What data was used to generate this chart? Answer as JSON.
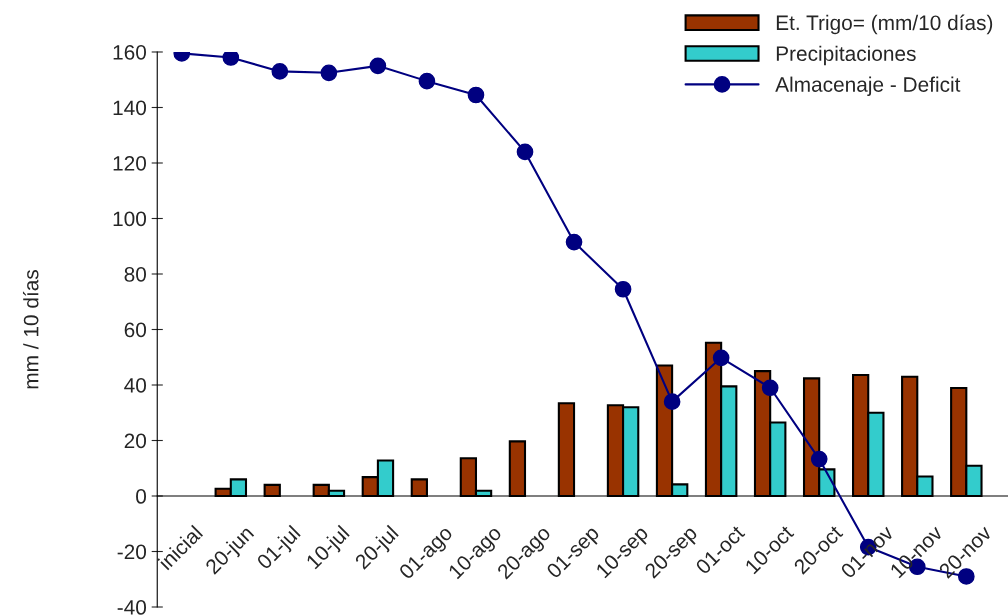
{
  "chart_data": {
    "type": "bar",
    "ylabel": "mm / 10 días",
    "categories": [
      "inicial",
      "20-jun",
      "01-jul",
      "10-jul",
      "20-jul",
      "01-ago",
      "10-ago",
      "20-ago",
      "01-sep",
      "10-sep",
      "20-sep",
      "01-oct",
      "10-oct",
      "20-oct",
      "01-nov",
      "10-nov",
      "20-nov"
    ],
    "series": [
      {
        "name": "Et. Trigo= (mm/10 días)",
        "color": "#993300",
        "values": [
          null,
          2.6,
          4,
          4,
          6.8,
          6,
          13.6,
          19.7,
          33.4,
          32.7,
          47,
          55.2,
          45,
          42.4,
          43.6,
          43,
          38.9
        ]
      },
      {
        "name": "Precipitaciones",
        "color": "#33cccc",
        "values": [
          null,
          6,
          null,
          1.9,
          12.8,
          null,
          1.9,
          null,
          null,
          32,
          4.2,
          39.5,
          26.5,
          9.6,
          30,
          7,
          10.9
        ]
      },
      {
        "name": "Almacenaje - Deficit",
        "type": "line",
        "color": "#000080",
        "marker": "circle",
        "line_style": "solid",
        "values": [
          159.5,
          158,
          153,
          152.5,
          155,
          149.5,
          144.5,
          124,
          91.5,
          74.5,
          34,
          49.8,
          39,
          13.3,
          -18.4,
          -25.5,
          -29
        ]
      }
    ],
    "ylim": [
      -40,
      160
    ],
    "yticks": [
      -40,
      -20,
      0,
      20,
      40,
      60,
      80,
      100,
      120,
      140,
      160
    ],
    "grid": false,
    "legend": "top right"
  }
}
